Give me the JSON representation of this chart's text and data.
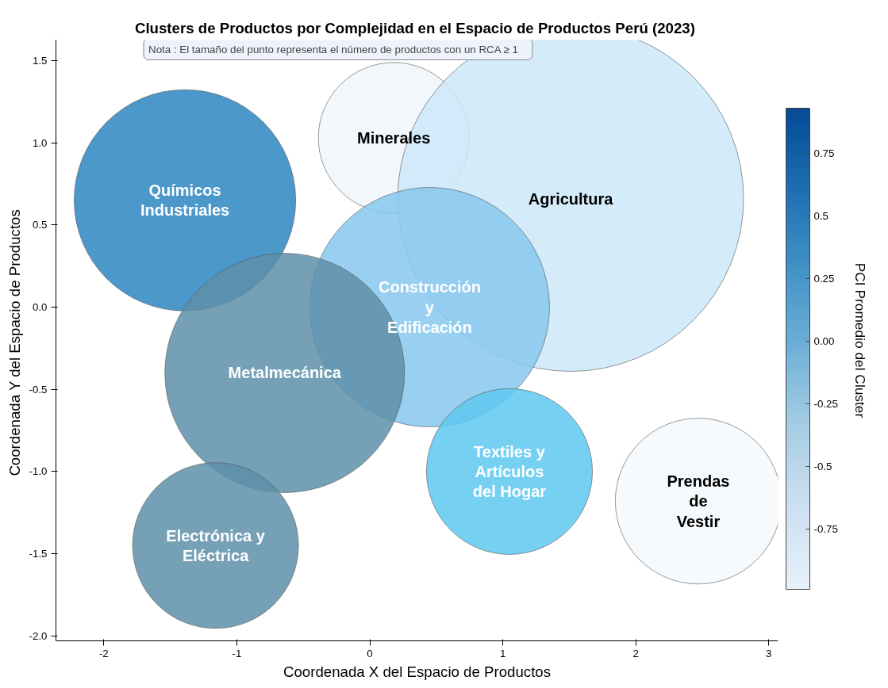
{
  "chart_data": {
    "type": "bubble",
    "title": "Clusters de Productos por Complejidad  en el Espacio de Productos Perú (2023)",
    "xlabel": "Coordenada X del Espacio de Productos",
    "ylabel": "Coordenada  Y del Espacio de Productos",
    "clabel": "PCI Promedio del Cluster",
    "annotations": [
      "Nota : El tamaño  del punto representa el número de productos con un RCA  ≥  1",
      {
        "text": "Químicos\nIndustriales",
        "x": -1.39,
        "y": 0.65
      },
      {
        "text": "Minerales",
        "x": 0.18,
        "y": 1.03
      },
      {
        "text": "Agricultura",
        "x": 1.51,
        "y": 0.66
      },
      {
        "text": "Construcción\ny\nEdificación",
        "x": 0.45,
        "y": 0.0
      },
      {
        "text": "Metalmecánica",
        "x": -0.64,
        "y": -0.4
      },
      {
        "text": "Electrónica y\nEléctrica",
        "x": -1.16,
        "y": -1.45
      },
      {
        "text": "Textiles y\nArtículos\ndel Hogar",
        "x": 1.05,
        "y": -1.0
      },
      {
        "text": "Prendas\nde\nVestir",
        "x": 2.47,
        "y": -1.18
      }
    ],
    "x": [
      -1.39,
      0.18,
      1.51,
      0.45,
      -0.64,
      -1.16,
      1.05,
      2.47
    ],
    "values": [
      0.65,
      1.03,
      0.66,
      0.0,
      -0.4,
      -1.45,
      -1.0,
      -1.18
    ],
    "sizes": [
      0.41,
      0.19,
      1,
      0.48,
      0.48,
      0.23,
      0.23,
      0.23
    ],
    "colors": [
      "#2e86c1",
      "#f0f6fc",
      "#cce8f8",
      "#87c8ee",
      "#5e8fa9",
      "#5e8fa9",
      "#5ec8f0",
      "#f5f9fd"
    ],
    "xlim": [
      -2.36,
      3.07
    ],
    "ylim": [
      -2.03,
      1.625
    ],
    "xticks": [
      -2,
      -1,
      0,
      1,
      2,
      3
    ],
    "yticks": [
      {
        "value": -2,
        "label": "-2.0"
      },
      -1.5,
      {
        "value": -1,
        "label": "-1.0"
      },
      -0.5,
      {
        "value": 0,
        "label": "0.0"
      },
      0.5,
      {
        "value": 1,
        "label": "1.0"
      },
      1.5
    ],
    "clim": [
      -0.99,
      0.93
    ],
    "cticks": [
      -0.75,
      -0.5,
      -0.25,
      {
        "value": 0,
        "label": "0.00"
      },
      0.25,
      0.5,
      0.75
    ],
    "grid": false
  }
}
